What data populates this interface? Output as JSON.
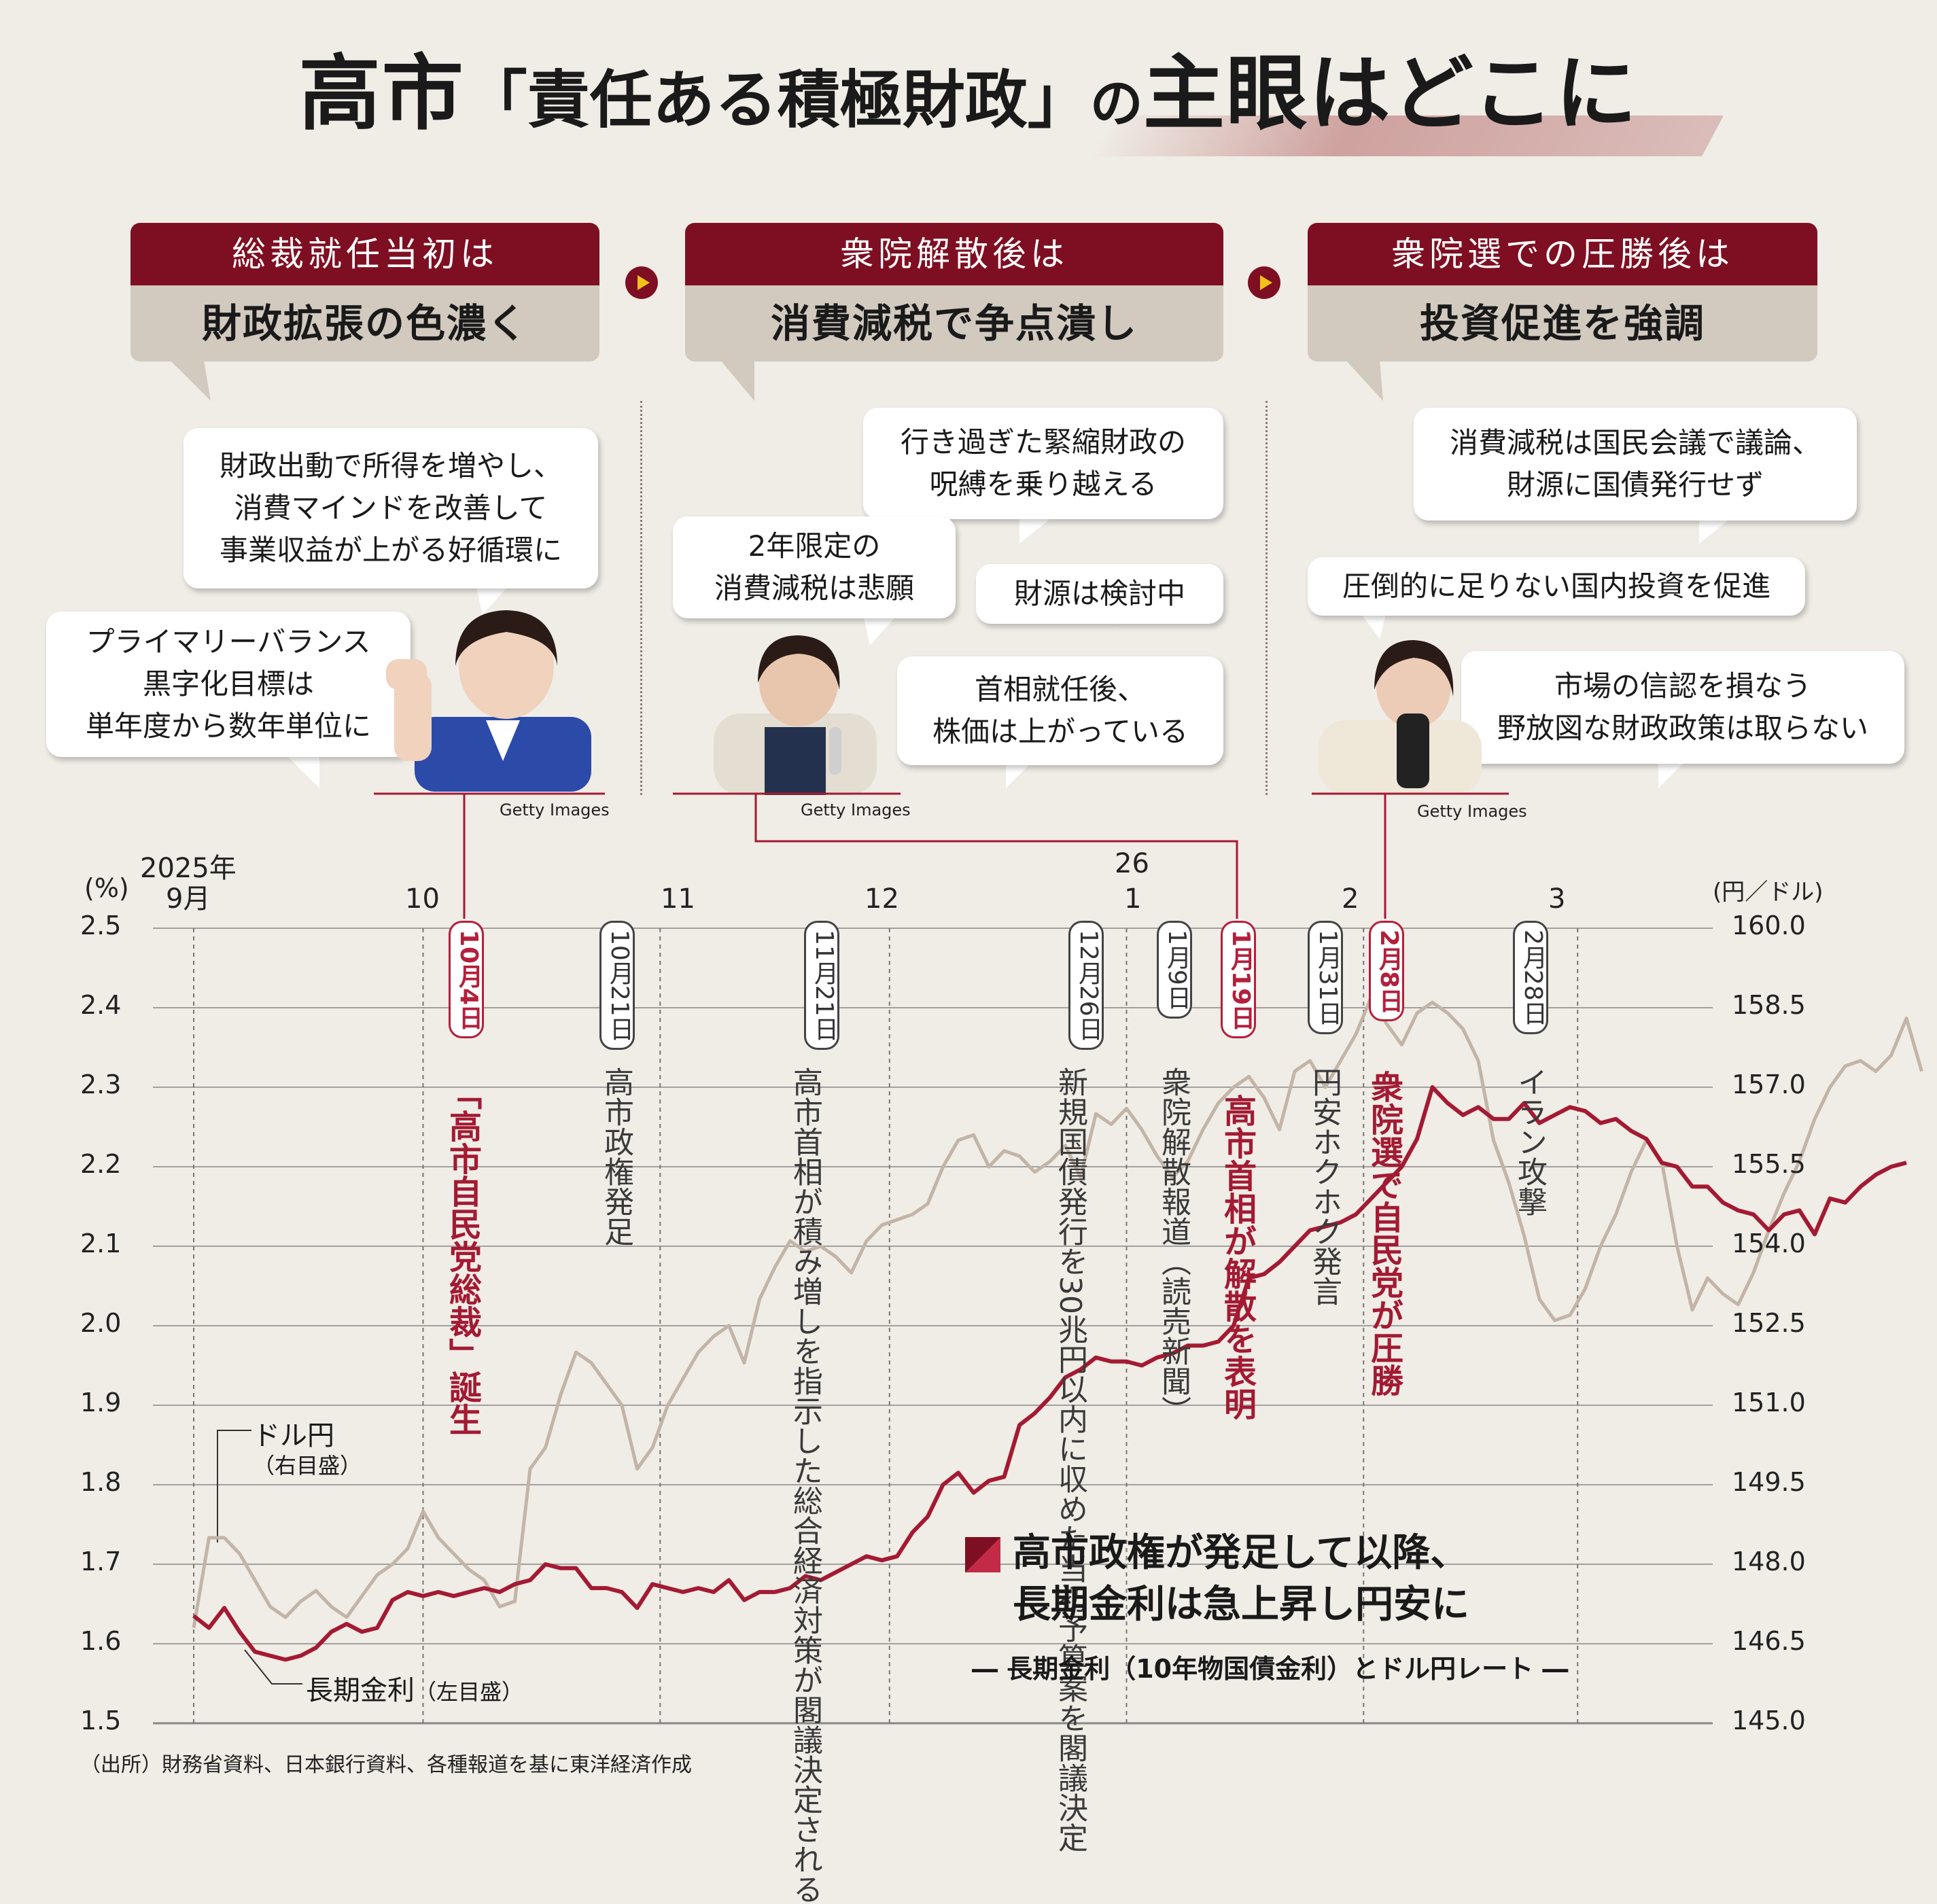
{
  "title": {
    "name": "高市",
    "middle": "「責任ある積極財政」",
    "no": "の",
    "end": "主眼はどこに"
  },
  "phases": [
    {
      "head": "総裁就任当初は",
      "body": "財政拡張の色濃く"
    },
    {
      "head": "衆院解散後は",
      "body": "消費減税で争点潰し"
    },
    {
      "head": "衆院選での圧勝後は",
      "body": "投資促進を強調"
    }
  ],
  "quotes": {
    "q1": [
      "財政出動で所得を増やし、",
      "消費マインドを改善して",
      "事業収益が上がる好循環に"
    ],
    "q2": [
      "プライマリーバランス",
      "黒字化目標は",
      "単年度から数年単位に"
    ],
    "q3": [
      "行き過ぎた緊縮財政の",
      "呪縛を乗り越える"
    ],
    "q4": [
      "2年限定の",
      "消費減税は悲願"
    ],
    "q5": [
      "財源は検討中"
    ],
    "q6": [
      "首相就任後、",
      "株価は上がっている"
    ],
    "q7": [
      "消費減税は国民会議で議論、",
      "財源に国債発行せず"
    ],
    "q8": [
      "圧倒的に足りない国内投資を促進"
    ],
    "q9": [
      "市場の信認を損なう",
      "野放図な財政政策は取らない"
    ]
  },
  "photo_credit": "Getty Images",
  "events": [
    {
      "date": "10月4日",
      "text": "「高市自民党総裁」誕生",
      "highlight": true
    },
    {
      "date": "10月21日",
      "text": "高市政権発足",
      "highlight": false
    },
    {
      "date": "11月21日",
      "text": "高市首相が積み増しを指示した総合経済対策が閣議決定される",
      "highlight": false
    },
    {
      "date": "12月26日",
      "text": "新規国債発行を30兆円以内に収めた当初予算案を閣議決定",
      "highlight": false
    },
    {
      "date": "1月9日",
      "text": "衆院解散報道（読売新聞）",
      "highlight": false
    },
    {
      "date": "1月19日",
      "text": "高市首相が解散を表明",
      "highlight": true
    },
    {
      "date": "1月31日",
      "text": "円安ホクホク発言",
      "highlight": false
    },
    {
      "date": "2月8日",
      "text": "衆院選で自民党が圧勝",
      "highlight": true
    },
    {
      "date": "2月28日",
      "text": "イラン攻撃",
      "highlight": false
    }
  ],
  "chart_note": {
    "line1": "高市政権が発足して以降、",
    "line2": "長期金利は急上昇し円安に",
    "sub": "― 長期金利（10年物国債金利）とドル円レート ―"
  },
  "source": "（出所）財務省資料、日本銀行資料、各種報道を基に東洋経済作成",
  "colors": {
    "jgb": "#a31a33",
    "usdjpy": "#c2b5a7",
    "accent": "#7e0f22"
  },
  "chart_data": {
    "type": "line",
    "title": "長期金利（10年物国債金利）とドル円レート",
    "x_month_labels": [
      "2025年",
      "9月",
      "10",
      "11",
      "12",
      "26",
      "1",
      "2",
      "3"
    ],
    "y_left": {
      "unit": "(%)",
      "ticks": [
        "2.5",
        "2.4",
        "2.3",
        "2.2",
        "2.1",
        "2.0",
        "1.9",
        "1.8",
        "1.7",
        "1.6",
        "1.5"
      ],
      "range": [
        1.5,
        2.5
      ]
    },
    "y_right": {
      "unit": "(円／ドル)",
      "ticks": [
        "160.0",
        "158.5",
        "157.0",
        "155.5",
        "154.0",
        "152.5",
        "151.0",
        "149.5",
        "148.0",
        "146.5",
        "145.0"
      ],
      "range": [
        145.0,
        160.0
      ]
    },
    "x_domain_days": [
      -3,
      199
    ],
    "series": [
      {
        "name": "長期金利（左目盛）",
        "axis": "left",
        "color": "#a31a33",
        "points": [
          [
            0,
            1.635
          ],
          [
            2,
            1.62
          ],
          [
            4,
            1.645
          ],
          [
            6,
            1.615
          ],
          [
            8,
            1.59
          ],
          [
            10,
            1.585
          ],
          [
            12,
            1.58
          ],
          [
            14,
            1.585
          ],
          [
            16,
            1.595
          ],
          [
            18,
            1.615
          ],
          [
            20,
            1.625
          ],
          [
            22,
            1.615
          ],
          [
            24,
            1.62
          ],
          [
            26,
            1.655
          ],
          [
            28,
            1.665
          ],
          [
            30,
            1.66
          ],
          [
            32,
            1.665
          ],
          [
            34,
            1.66
          ],
          [
            36,
            1.665
          ],
          [
            38,
            1.67
          ],
          [
            40,
            1.665
          ],
          [
            42,
            1.675
          ],
          [
            44,
            1.68
          ],
          [
            46,
            1.7
          ],
          [
            48,
            1.695
          ],
          [
            50,
            1.695
          ],
          [
            52,
            1.67
          ],
          [
            54,
            1.67
          ],
          [
            56,
            1.665
          ],
          [
            58,
            1.645
          ],
          [
            60,
            1.675
          ],
          [
            62,
            1.67
          ],
          [
            64,
            1.665
          ],
          [
            66,
            1.67
          ],
          [
            68,
            1.665
          ],
          [
            70,
            1.68
          ],
          [
            72,
            1.655
          ],
          [
            74,
            1.665
          ],
          [
            76,
            1.665
          ],
          [
            78,
            1.67
          ],
          [
            80,
            1.685
          ],
          [
            82,
            1.68
          ],
          [
            84,
            1.69
          ],
          [
            86,
            1.7
          ],
          [
            88,
            1.71
          ],
          [
            90,
            1.705
          ],
          [
            92,
            1.71
          ],
          [
            94,
            1.74
          ],
          [
            96,
            1.76
          ],
          [
            98,
            1.8
          ],
          [
            100,
            1.815
          ],
          [
            102,
            1.79
          ],
          [
            104,
            1.805
          ],
          [
            106,
            1.81
          ],
          [
            108,
            1.875
          ],
          [
            110,
            1.89
          ],
          [
            112,
            1.91
          ],
          [
            114,
            1.935
          ],
          [
            116,
            1.945
          ],
          [
            118,
            1.96
          ],
          [
            120,
            1.955
          ],
          [
            122,
            1.955
          ],
          [
            124,
            1.95
          ],
          [
            126,
            1.96
          ],
          [
            128,
            1.965
          ],
          [
            130,
            1.975
          ],
          [
            132,
            1.975
          ],
          [
            134,
            1.98
          ],
          [
            136,
            2.0
          ],
          [
            138,
            2.06
          ],
          [
            140,
            2.065
          ],
          [
            142,
            2.08
          ],
          [
            144,
            2.1
          ],
          [
            146,
            2.12
          ],
          [
            148,
            2.125
          ],
          [
            150,
            2.13
          ],
          [
            152,
            2.14
          ],
          [
            154,
            2.16
          ],
          [
            156,
            2.18
          ],
          [
            158,
            2.2
          ],
          [
            160,
            2.235
          ],
          [
            162,
            2.3
          ],
          [
            164,
            2.28
          ],
          [
            166,
            2.265
          ],
          [
            168,
            2.275
          ],
          [
            170,
            2.26
          ],
          [
            172,
            2.26
          ],
          [
            174,
            2.28
          ],
          [
            176,
            2.255
          ],
          [
            178,
            2.265
          ],
          [
            180,
            2.275
          ],
          [
            182,
            2.27
          ],
          [
            184,
            2.255
          ],
          [
            186,
            2.26
          ],
          [
            188,
            2.245
          ],
          [
            190,
            2.235
          ],
          [
            192,
            2.205
          ],
          [
            194,
            2.2
          ],
          [
            196,
            2.175
          ],
          [
            198,
            2.175
          ],
          [
            200,
            2.155
          ],
          [
            202,
            2.145
          ],
          [
            204,
            2.14
          ],
          [
            206,
            2.12
          ],
          [
            208,
            2.14
          ],
          [
            210,
            2.145
          ],
          [
            212,
            2.115
          ],
          [
            214,
            2.16
          ],
          [
            216,
            2.155
          ],
          [
            218,
            2.175
          ],
          [
            220,
            2.19
          ],
          [
            222,
            2.2
          ],
          [
            224,
            2.205
          ]
        ]
      },
      {
        "name": "ドル円（右目盛）",
        "axis": "right",
        "color": "#c2b5a7",
        "points": [
          [
            0,
            146.8
          ],
          [
            2,
            148.5
          ],
          [
            4,
            148.5
          ],
          [
            6,
            148.2
          ],
          [
            8,
            147.7
          ],
          [
            10,
            147.2
          ],
          [
            12,
            147.0
          ],
          [
            14,
            147.3
          ],
          [
            16,
            147.5
          ],
          [
            18,
            147.2
          ],
          [
            20,
            147.0
          ],
          [
            22,
            147.4
          ],
          [
            24,
            147.8
          ],
          [
            26,
            148.0
          ],
          [
            28,
            148.3
          ],
          [
            30,
            149.0
          ],
          [
            32,
            148.5
          ],
          [
            34,
            148.2
          ],
          [
            36,
            147.9
          ],
          [
            38,
            147.7
          ],
          [
            40,
            147.2
          ],
          [
            42,
            147.3
          ],
          [
            44,
            149.8
          ],
          [
            46,
            150.2
          ],
          [
            48,
            151.2
          ],
          [
            50,
            152.0
          ],
          [
            52,
            151.8
          ],
          [
            54,
            151.4
          ],
          [
            56,
            151.0
          ],
          [
            58,
            149.8
          ],
          [
            60,
            150.2
          ],
          [
            62,
            151.0
          ],
          [
            64,
            151.5
          ],
          [
            66,
            152.0
          ],
          [
            68,
            152.3
          ],
          [
            70,
            152.5
          ],
          [
            72,
            151.8
          ],
          [
            74,
            153.0
          ],
          [
            76,
            153.6
          ],
          [
            78,
            154.1
          ],
          [
            80,
            153.9
          ],
          [
            82,
            154.0
          ],
          [
            84,
            153.8
          ],
          [
            86,
            153.5
          ],
          [
            88,
            154.1
          ],
          [
            90,
            154.4
          ],
          [
            92,
            154.5
          ],
          [
            94,
            154.6
          ],
          [
            96,
            154.8
          ],
          [
            98,
            155.5
          ],
          [
            100,
            156.0
          ],
          [
            102,
            156.1
          ],
          [
            104,
            155.5
          ],
          [
            106,
            155.8
          ],
          [
            108,
            155.7
          ],
          [
            110,
            155.4
          ],
          [
            112,
            155.6
          ],
          [
            114,
            155.9
          ],
          [
            116,
            155.3
          ],
          [
            118,
            156.5
          ],
          [
            120,
            156.3
          ],
          [
            122,
            156.6
          ],
          [
            124,
            156.2
          ],
          [
            126,
            155.7
          ],
          [
            128,
            155.3
          ],
          [
            130,
            155.6
          ],
          [
            132,
            156.2
          ],
          [
            134,
            156.7
          ],
          [
            136,
            157.0
          ],
          [
            138,
            157.2
          ],
          [
            140,
            156.8
          ],
          [
            142,
            156.2
          ],
          [
            144,
            157.3
          ],
          [
            146,
            157.5
          ],
          [
            148,
            157.0
          ],
          [
            150,
            157.5
          ],
          [
            152,
            158.0
          ],
          [
            154,
            158.7
          ],
          [
            156,
            158.2
          ],
          [
            158,
            157.8
          ],
          [
            160,
            158.4
          ],
          [
            162,
            158.6
          ],
          [
            164,
            158.4
          ],
          [
            166,
            158.1
          ],
          [
            168,
            157.5
          ],
          [
            170,
            156.0
          ],
          [
            172,
            155.2
          ],
          [
            174,
            154.2
          ],
          [
            176,
            153.0
          ],
          [
            178,
            152.6
          ],
          [
            180,
            152.7
          ],
          [
            182,
            153.2
          ],
          [
            184,
            154.0
          ],
          [
            186,
            154.6
          ],
          [
            188,
            155.4
          ],
          [
            190,
            156.0
          ],
          [
            192,
            155.6
          ],
          [
            194,
            154.0
          ],
          [
            196,
            152.8
          ],
          [
            198,
            153.4
          ],
          [
            200,
            153.1
          ],
          [
            202,
            152.9
          ],
          [
            204,
            153.5
          ],
          [
            206,
            154.3
          ],
          [
            208,
            155.0
          ],
          [
            210,
            155.6
          ],
          [
            212,
            156.4
          ],
          [
            214,
            157.0
          ],
          [
            216,
            157.4
          ],
          [
            218,
            157.5
          ],
          [
            220,
            157.3
          ],
          [
            222,
            157.6
          ],
          [
            224,
            158.3
          ],
          [
            226,
            157.3
          ]
        ]
      }
    ],
    "series_labels": {
      "usdjpy_name": "ドル円",
      "usdjpy_axis": "（右目盛）",
      "jgb_name": "長期金利",
      "jgb_axis": "（左目盛）"
    },
    "grid": true
  }
}
